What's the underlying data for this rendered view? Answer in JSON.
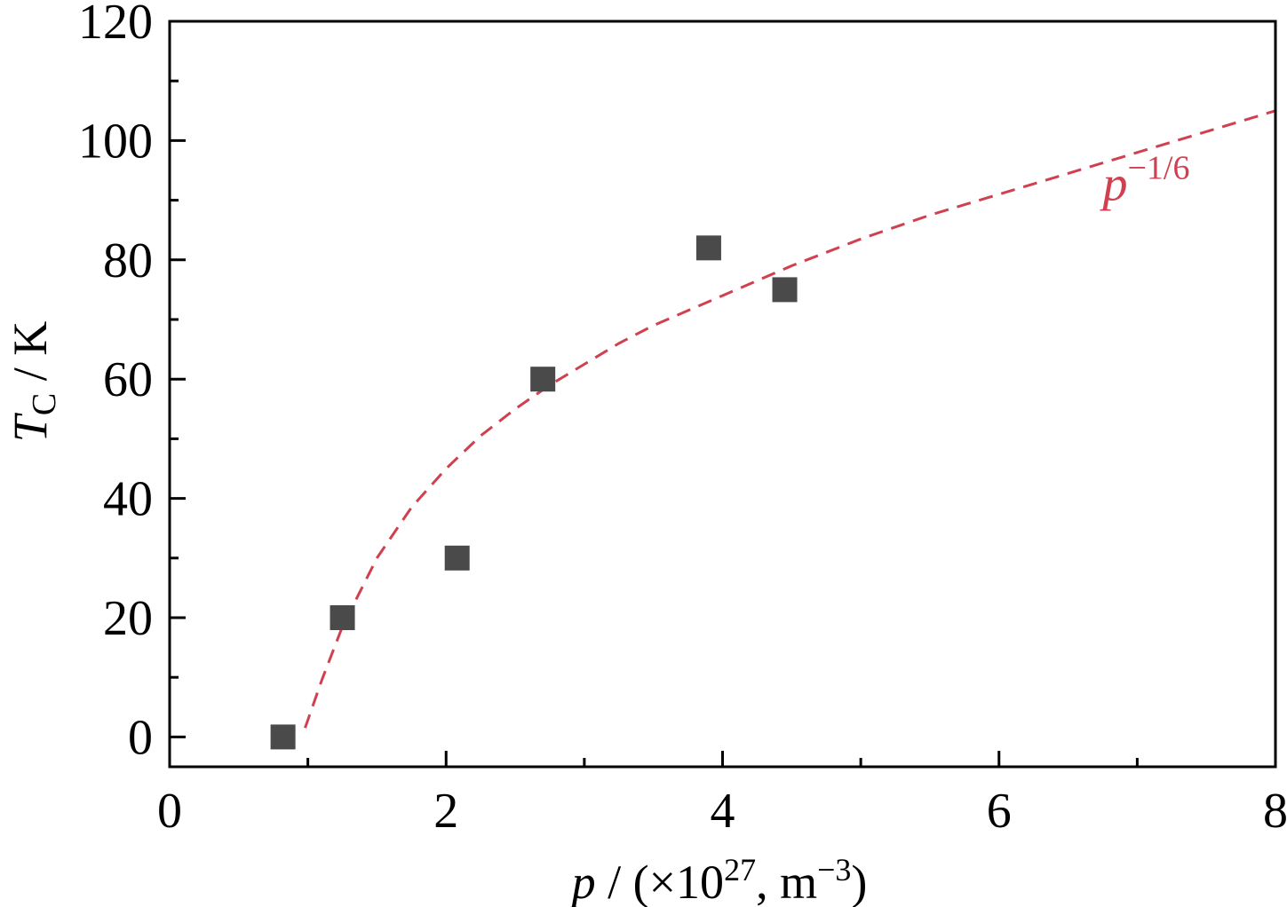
{
  "chart_data": {
    "type": "scatter",
    "xlabel": {
      "var": "p",
      "pre": " / (×10",
      "sup": "27",
      "mid": ", m",
      "sup2": "−3",
      "post": ")"
    },
    "ylabel": {
      "var": "T",
      "sub": "C",
      "post": " / K"
    },
    "xlim": [
      0,
      8
    ],
    "ylim": [
      -5,
      120
    ],
    "x_ticks": [
      0,
      2,
      4,
      6,
      8
    ],
    "y_ticks": [
      0,
      20,
      40,
      60,
      80,
      100,
      120
    ],
    "x_minor_ticks": [
      1,
      3,
      5,
      7
    ],
    "y_minor_ticks": [
      10,
      30,
      50,
      70,
      90,
      110
    ],
    "grid": false,
    "series": [
      {
        "marker": "square",
        "color": "#4a4a4a",
        "x": [
          0.82,
          1.25,
          2.08,
          2.7,
          3.9,
          4.45
        ],
        "y": [
          0,
          20,
          30,
          60,
          82,
          75
        ]
      }
    ],
    "fit_curve": {
      "color": "#d0404f",
      "style": "dashed",
      "x": [
        0.98,
        1.1,
        1.25,
        1.5,
        1.75,
        2.0,
        2.25,
        2.5,
        2.75,
        3.0,
        3.25,
        3.5,
        3.75,
        4.0,
        4.5,
        5.0,
        5.5,
        6.0,
        6.5,
        7.0,
        7.5,
        8.0
      ],
      "y": [
        1.5,
        9.5,
        18.5,
        30.0,
        38.5,
        45.0,
        50.5,
        55.0,
        59.0,
        62.5,
        66.0,
        69.0,
        71.5,
        74.0,
        79.0,
        83.5,
        87.5,
        91.0,
        94.5,
        98.0,
        101.5,
        105.0
      ]
    },
    "annotation": {
      "base": "p",
      "sup": "−1/6",
      "x": 6.75,
      "y": 90
    }
  }
}
